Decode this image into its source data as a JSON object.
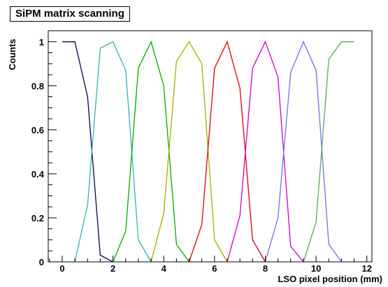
{
  "chart_data": {
    "type": "line",
    "title": "SiPM matrix scanning",
    "xlabel": "LSO pixel position (mm)",
    "ylabel": "Counts",
    "xlim": [
      -0.55,
      12.2
    ],
    "ylim": [
      0,
      1.05
    ],
    "xticks": [
      0,
      2,
      4,
      6,
      8,
      10,
      12
    ],
    "yticks": [
      0,
      0.2,
      0.4,
      0.6,
      0.8,
      1
    ],
    "ytick_labels": [
      "0",
      "0.2",
      "0.4",
      "0.6",
      "0.8",
      "1"
    ],
    "grid": false,
    "series": [
      {
        "color": "#00005a",
        "x": [
          0,
          0.5,
          1.0,
          1.5,
          2.0
        ],
        "y": [
          1.0,
          1.0,
          0.75,
          0.03,
          0.0
        ]
      },
      {
        "color": "#33b3b3",
        "x": [
          0.5,
          1.0,
          1.5,
          2.0,
          2.5,
          3.0,
          3.5
        ],
        "y": [
          0.0,
          0.26,
          0.97,
          1.0,
          0.87,
          0.1,
          0.0
        ]
      },
      {
        "color": "#00aa00",
        "x": [
          2.0,
          2.5,
          3.0,
          3.5,
          4.0,
          4.5,
          5.0
        ],
        "y": [
          0.0,
          0.14,
          0.88,
          1.0,
          0.8,
          0.08,
          0.0
        ]
      },
      {
        "color": "#aaaa00",
        "x": [
          3.5,
          4.0,
          4.5,
          5.0,
          5.5,
          6.0,
          6.5
        ],
        "y": [
          0.0,
          0.22,
          0.91,
          1.0,
          0.9,
          0.1,
          0.0
        ]
      },
      {
        "color": "#dd0000",
        "x": [
          5.0,
          5.5,
          6.0,
          6.5,
          7.0,
          7.5,
          8.0
        ],
        "y": [
          0.0,
          0.17,
          0.88,
          1.0,
          0.79,
          0.1,
          0.0
        ]
      },
      {
        "color": "#cc00cc",
        "x": [
          6.5,
          7.0,
          7.5,
          8.0,
          8.5,
          9.0,
          9.5
        ],
        "y": [
          0.0,
          0.21,
          0.88,
          1.0,
          0.84,
          0.07,
          0.0
        ]
      },
      {
        "color": "#6f6fee",
        "x": [
          8.0,
          8.5,
          9.0,
          9.5,
          10.0,
          10.5,
          11.0
        ],
        "y": [
          0.0,
          0.2,
          0.86,
          1.0,
          0.87,
          0.08,
          0.0
        ]
      },
      {
        "color": "#55aa55",
        "x": [
          9.5,
          10.0,
          10.5,
          11.0,
          11.5
        ],
        "y": [
          0.0,
          0.18,
          0.92,
          1.0,
          1.0
        ]
      }
    ]
  }
}
